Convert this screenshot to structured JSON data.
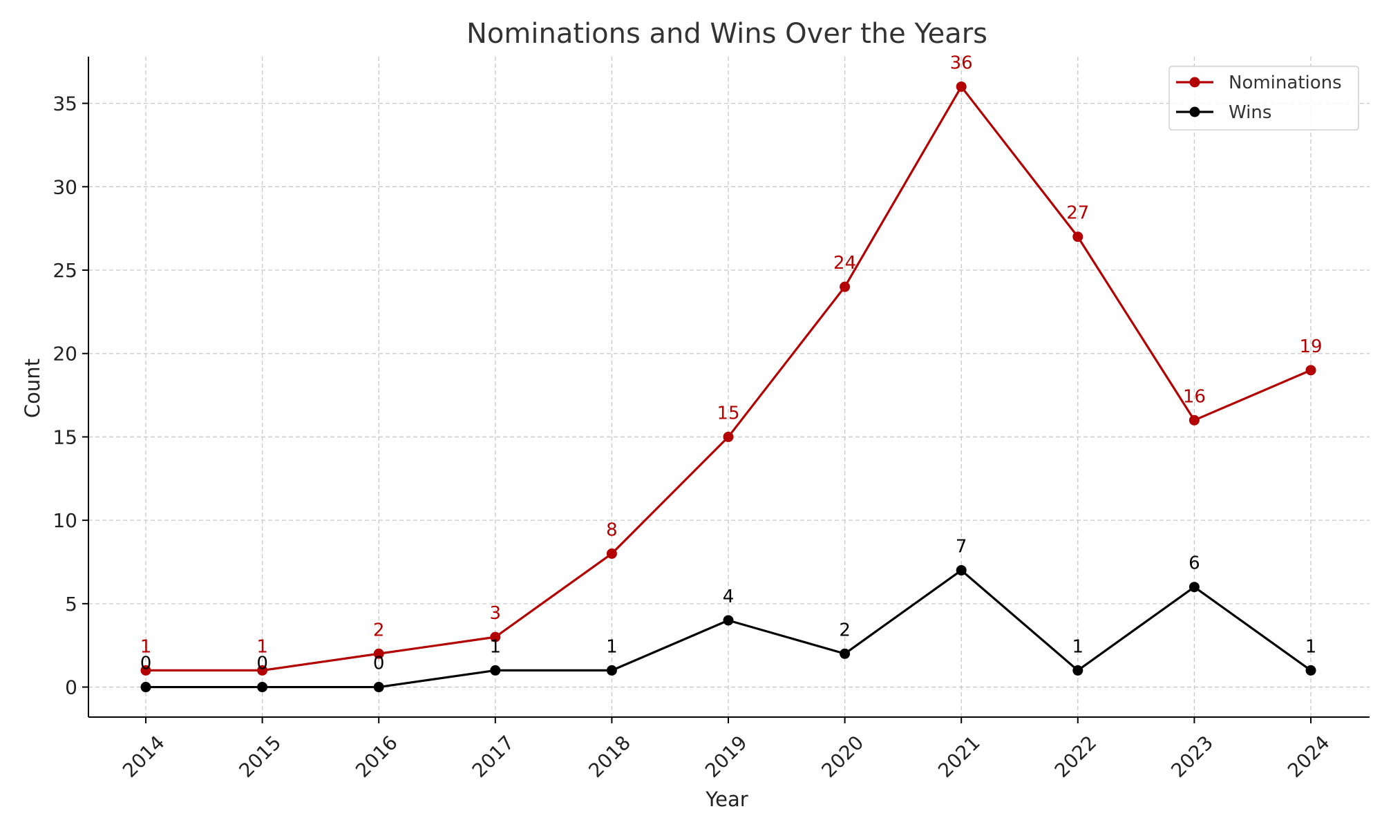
{
  "chart_data": {
    "type": "line",
    "title": "Nominations and Wins Over the Years",
    "xlabel": "Year",
    "ylabel": "Count",
    "x": [
      "2014",
      "2015",
      "2016",
      "2017",
      "2018",
      "2019",
      "2020",
      "2021",
      "2022",
      "2023",
      "2024"
    ],
    "yticks": [
      0,
      5,
      10,
      15,
      20,
      25,
      30,
      35
    ],
    "ylim": [
      -1.8,
      37.8
    ],
    "grid": true,
    "legend_position": "top-right",
    "series": [
      {
        "name": "Nominations",
        "color": "#b30000",
        "values": [
          1,
          1,
          2,
          3,
          8,
          15,
          24,
          36,
          27,
          16,
          19
        ]
      },
      {
        "name": "Wins",
        "color": "#000000",
        "values": [
          0,
          0,
          0,
          1,
          1,
          4,
          2,
          7,
          1,
          6,
          1
        ]
      }
    ]
  }
}
